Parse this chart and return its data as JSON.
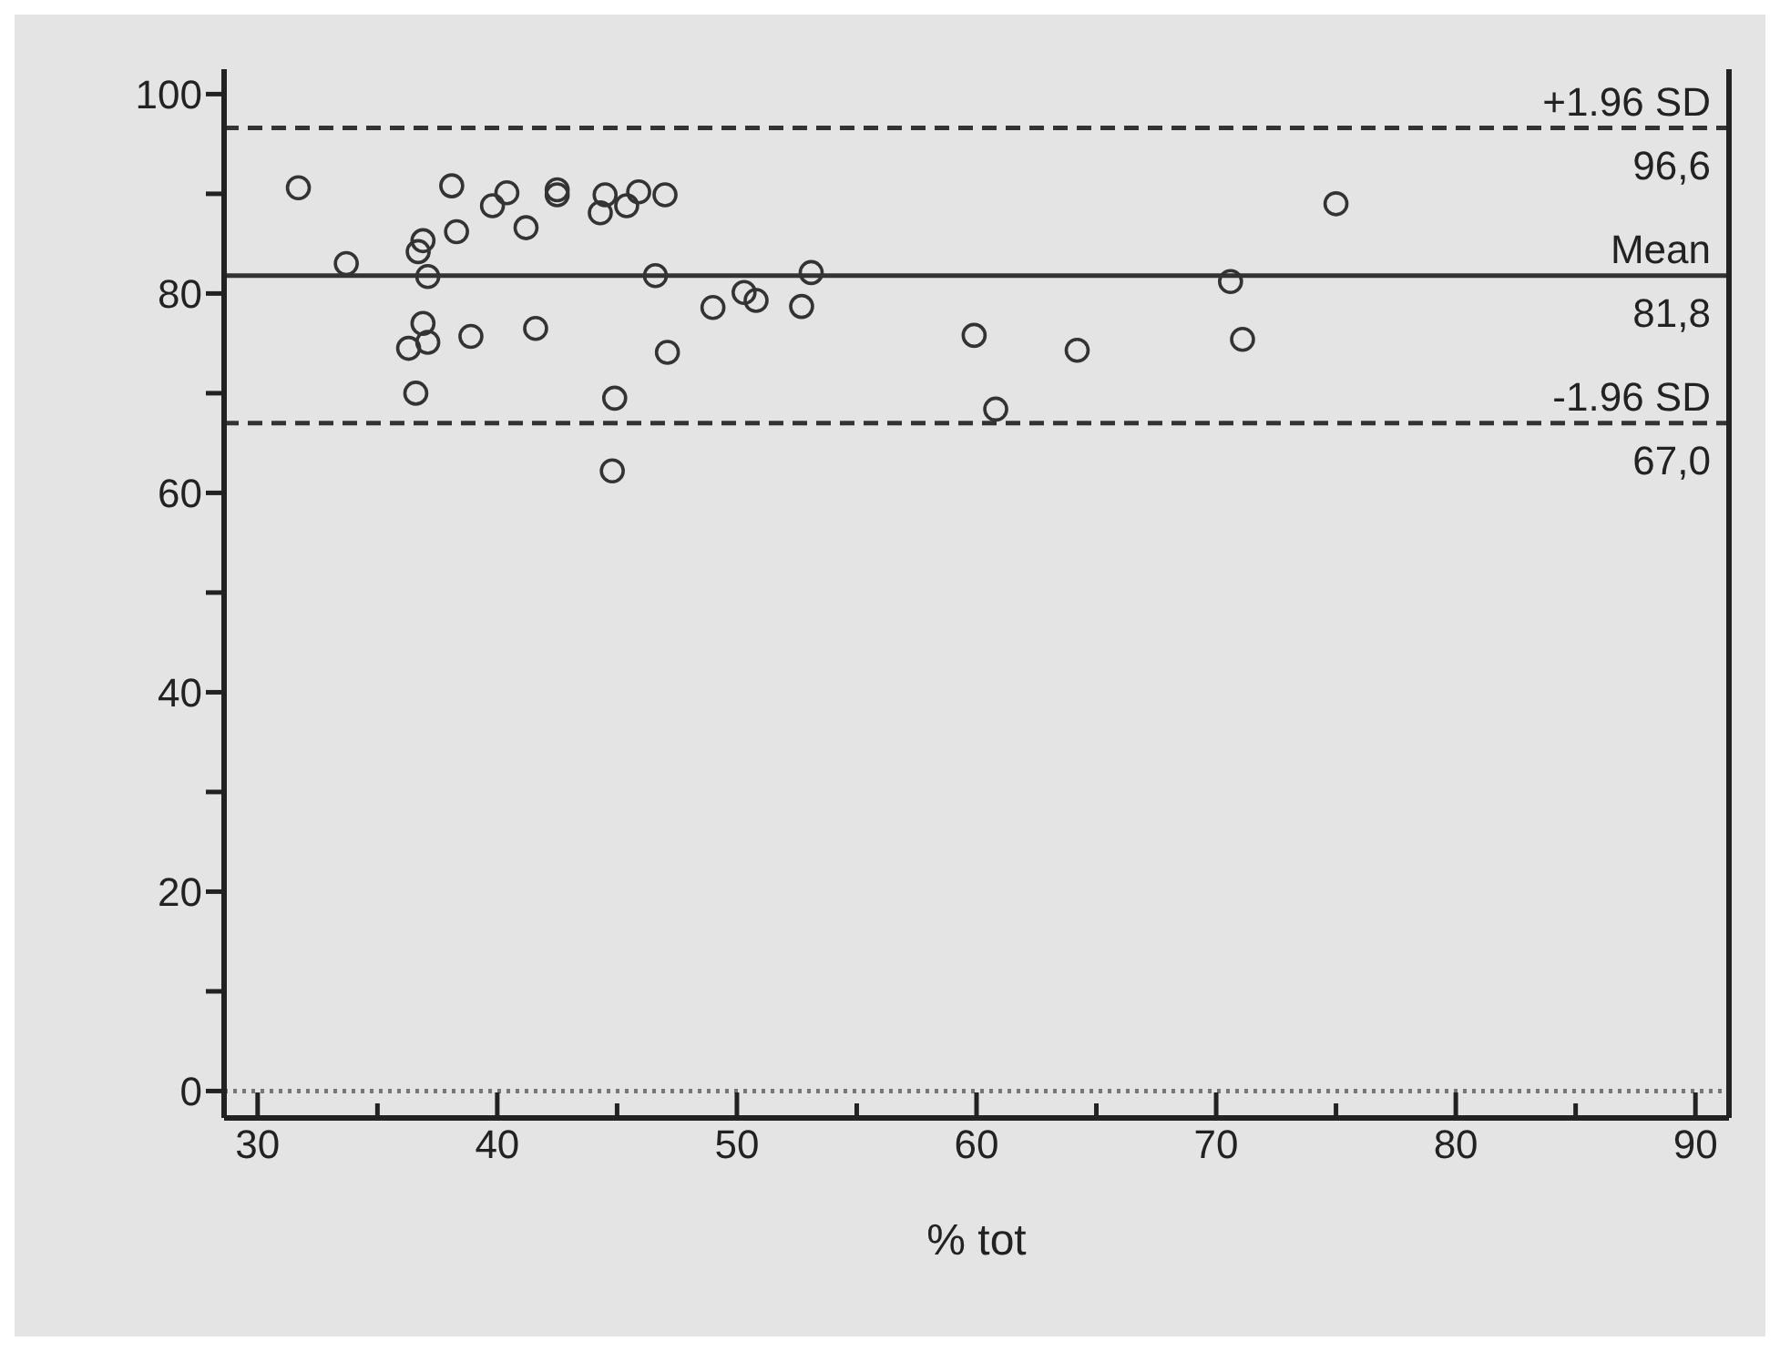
{
  "chart_data": {
    "type": "scatter",
    "xlabel": "% tot",
    "x": [
      31.7,
      33.7,
      38.1,
      36.9,
      36.7,
      37.1,
      38.3,
      39.8,
      40.4,
      41.2,
      42.5,
      42.5,
      44.3,
      44.5,
      45.4,
      45.9,
      47.0,
      46.6,
      49.0,
      50.3,
      50.8,
      52.7,
      53.1,
      47.1,
      44.9,
      44.8,
      36.9,
      36.3,
      37.1,
      38.9,
      41.6,
      36.6,
      59.9,
      60.8,
      64.2,
      70.6,
      71.1,
      75.0
    ],
    "series": [
      {
        "color": "#333333",
        "values": [
          90.6,
          83.0,
          90.8,
          85.3,
          84.2,
          81.7,
          86.2,
          88.8,
          90.1,
          86.6,
          90.4,
          89.9,
          88.1,
          89.9,
          88.8,
          90.2,
          89.9,
          81.8,
          78.6,
          80.1,
          79.3,
          78.7,
          82.1,
          74.1,
          69.5,
          62.2,
          77.0,
          74.5,
          75.1,
          75.7,
          76.5,
          70.0,
          75.8,
          68.4,
          74.3,
          81.2,
          75.4,
          89.0
        ]
      }
    ],
    "marker": "circle",
    "xlim": [
      28.6,
      91.4
    ],
    "ylim": [
      -2.7,
      102.5
    ],
    "xticks": [
      30,
      {
        "value": 35,
        "label": null
      },
      40,
      {
        "value": 45,
        "label": null
      },
      50,
      {
        "value": 55,
        "label": null
      },
      60,
      {
        "value": 65,
        "label": null
      },
      70,
      {
        "value": 75,
        "label": null
      },
      80,
      {
        "value": 85,
        "label": null
      },
      90
    ],
    "yticks": [
      0,
      {
        "value": 10,
        "label": null
      },
      20,
      {
        "value": 30,
        "label": null
      },
      40,
      {
        "value": 50,
        "label": null
      },
      60,
      {
        "value": 70,
        "label": null
      },
      80,
      {
        "value": 90,
        "label": null
      },
      100
    ],
    "ref_lines": [
      {
        "axis": "y",
        "value": 96.6,
        "label": "+1.96 SD",
        "color": "#333333",
        "line_style": "dashed"
      },
      {
        "axis": "y",
        "value": 81.8,
        "label": "Mean",
        "color": "#333333",
        "line_style": "solid"
      },
      {
        "axis": "y",
        "value": 67.0,
        "label": "-1.96 SD",
        "color": "#333333",
        "line_style": "dashed"
      },
      {
        "axis": "y",
        "value": 0,
        "color": "#777777",
        "line_style": "dotted"
      }
    ],
    "annotations": [
      "96,6",
      "81,8",
      "67,0"
    ],
    "grid": false,
    "legend": false
  }
}
